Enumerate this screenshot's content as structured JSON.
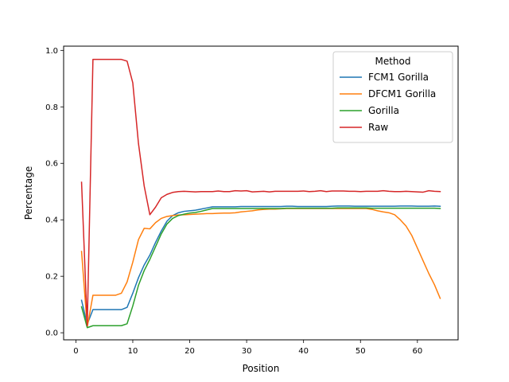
{
  "chart_data": {
    "type": "line",
    "title": "",
    "xlabel": "Position",
    "ylabel": "Percentage",
    "xlim": [
      -2.15,
      67.15
    ],
    "ylim": [
      -0.025,
      1.015
    ],
    "xticks": [
      0,
      10,
      20,
      30,
      40,
      50,
      60
    ],
    "yticks": [
      0.0,
      0.2,
      0.4,
      0.6,
      0.8,
      1.0
    ],
    "grid": false,
    "legend": {
      "title": "Method",
      "placement": "top-right"
    },
    "x": [
      1,
      2,
      3,
      4,
      5,
      6,
      7,
      8,
      9,
      10,
      11,
      12,
      13,
      14,
      15,
      16,
      17,
      18,
      19,
      20,
      21,
      22,
      23,
      24,
      25,
      26,
      27,
      28,
      29,
      30,
      31,
      32,
      33,
      34,
      35,
      36,
      37,
      38,
      39,
      40,
      41,
      42,
      43,
      44,
      45,
      46,
      47,
      48,
      49,
      50,
      51,
      52,
      53,
      54,
      55,
      56,
      57,
      58,
      59,
      60,
      61,
      62,
      63,
      64
    ],
    "series": [
      {
        "name": "FCM1 Gorilla",
        "color": "#1f77b4",
        "values": [
          0.115,
          0.03,
          0.082,
          0.082,
          0.082,
          0.082,
          0.082,
          0.082,
          0.09,
          0.14,
          0.195,
          0.24,
          0.275,
          0.32,
          0.36,
          0.395,
          0.415,
          0.425,
          0.43,
          0.432,
          0.434,
          0.438,
          0.442,
          0.446,
          0.446,
          0.446,
          0.446,
          0.446,
          0.447,
          0.447,
          0.447,
          0.447,
          0.447,
          0.447,
          0.447,
          0.447,
          0.448,
          0.448,
          0.447,
          0.447,
          0.447,
          0.447,
          0.447,
          0.447,
          0.448,
          0.449,
          0.449,
          0.449,
          0.448,
          0.448,
          0.448,
          0.448,
          0.448,
          0.448,
          0.448,
          0.448,
          0.449,
          0.449,
          0.449,
          0.448,
          0.448,
          0.448,
          0.449,
          0.448
        ]
      },
      {
        "name": "DFCM1 Gorilla",
        "color": "#ff7f0e",
        "values": [
          0.288,
          0.02,
          0.133,
          0.133,
          0.133,
          0.133,
          0.133,
          0.14,
          0.18,
          0.25,
          0.33,
          0.37,
          0.368,
          0.39,
          0.405,
          0.412,
          0.415,
          0.417,
          0.418,
          0.419,
          0.42,
          0.421,
          0.422,
          0.422,
          0.423,
          0.424,
          0.424,
          0.425,
          0.428,
          0.43,
          0.432,
          0.435,
          0.437,
          0.438,
          0.438,
          0.439,
          0.44,
          0.44,
          0.44,
          0.44,
          0.44,
          0.44,
          0.44,
          0.44,
          0.44,
          0.44,
          0.44,
          0.44,
          0.44,
          0.44,
          0.44,
          0.437,
          0.432,
          0.428,
          0.425,
          0.418,
          0.4,
          0.378,
          0.345,
          0.3,
          0.255,
          0.21,
          0.17,
          0.122
        ]
      },
      {
        "name": "Gorilla",
        "color": "#2ca02c",
        "values": [
          0.092,
          0.018,
          0.025,
          0.025,
          0.025,
          0.025,
          0.025,
          0.025,
          0.032,
          0.095,
          0.168,
          0.22,
          0.26,
          0.305,
          0.35,
          0.385,
          0.405,
          0.415,
          0.42,
          0.424,
          0.426,
          0.43,
          0.435,
          0.44,
          0.44,
          0.44,
          0.44,
          0.44,
          0.44,
          0.44,
          0.44,
          0.44,
          0.44,
          0.44,
          0.44,
          0.44,
          0.441,
          0.441,
          0.441,
          0.441,
          0.441,
          0.441,
          0.441,
          0.441,
          0.441,
          0.442,
          0.442,
          0.442,
          0.442,
          0.442,
          0.442,
          0.441,
          0.441,
          0.441,
          0.441,
          0.441,
          0.441,
          0.441,
          0.441,
          0.441,
          0.441,
          0.441,
          0.441,
          0.44
        ]
      },
      {
        "name": "Raw",
        "color": "#d62728",
        "values": [
          0.533,
          0.025,
          0.968,
          0.968,
          0.968,
          0.968,
          0.968,
          0.968,
          0.962,
          0.885,
          0.67,
          0.52,
          0.418,
          0.445,
          0.478,
          0.49,
          0.497,
          0.5,
          0.501,
          0.5,
          0.499,
          0.5,
          0.5,
          0.5,
          0.502,
          0.5,
          0.5,
          0.503,
          0.502,
          0.503,
          0.499,
          0.5,
          0.501,
          0.499,
          0.501,
          0.501,
          0.501,
          0.501,
          0.501,
          0.502,
          0.5,
          0.501,
          0.503,
          0.5,
          0.502,
          0.502,
          0.502,
          0.501,
          0.501,
          0.5,
          0.501,
          0.501,
          0.501,
          0.503,
          0.501,
          0.5,
          0.5,
          0.501,
          0.5,
          0.499,
          0.498,
          0.503,
          0.501,
          0.5
        ]
      }
    ]
  }
}
